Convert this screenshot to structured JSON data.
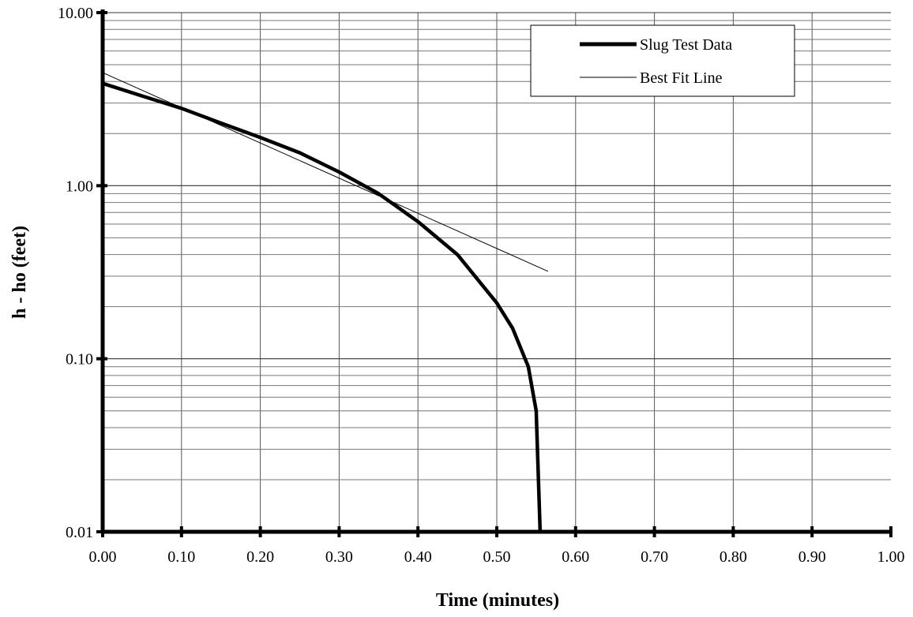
{
  "chart_data": {
    "type": "line",
    "title": "",
    "xlabel": "Time (minutes)",
    "ylabel": "h - ho (feet)",
    "xlim": [
      0,
      1
    ],
    "ylim": [
      0.01,
      10
    ],
    "y_scale": "log",
    "grid": true,
    "legend_position": "top-right",
    "x_ticks": [
      "0.00",
      "0.10",
      "0.20",
      "0.30",
      "0.40",
      "0.50",
      "0.60",
      "0.70",
      "0.80",
      "0.90",
      "1.00"
    ],
    "y_ticks": [
      "10.00",
      "1.00",
      "0.10",
      "0.01"
    ],
    "series": [
      {
        "name": "Slug Test Data",
        "style": "thick",
        "x": [
          0.0,
          0.05,
          0.1,
          0.15,
          0.2,
          0.25,
          0.3,
          0.35,
          0.4,
          0.45,
          0.5,
          0.52,
          0.54,
          0.55,
          0.555
        ],
        "y": [
          3.9,
          3.3,
          2.8,
          2.3,
          1.9,
          1.55,
          1.2,
          0.9,
          0.62,
          0.4,
          0.21,
          0.15,
          0.09,
          0.05,
          0.01
        ]
      },
      {
        "name": "Best Fit Line",
        "style": "thin",
        "x": [
          0.0,
          0.565
        ],
        "y": [
          4.5,
          0.32
        ]
      }
    ]
  }
}
